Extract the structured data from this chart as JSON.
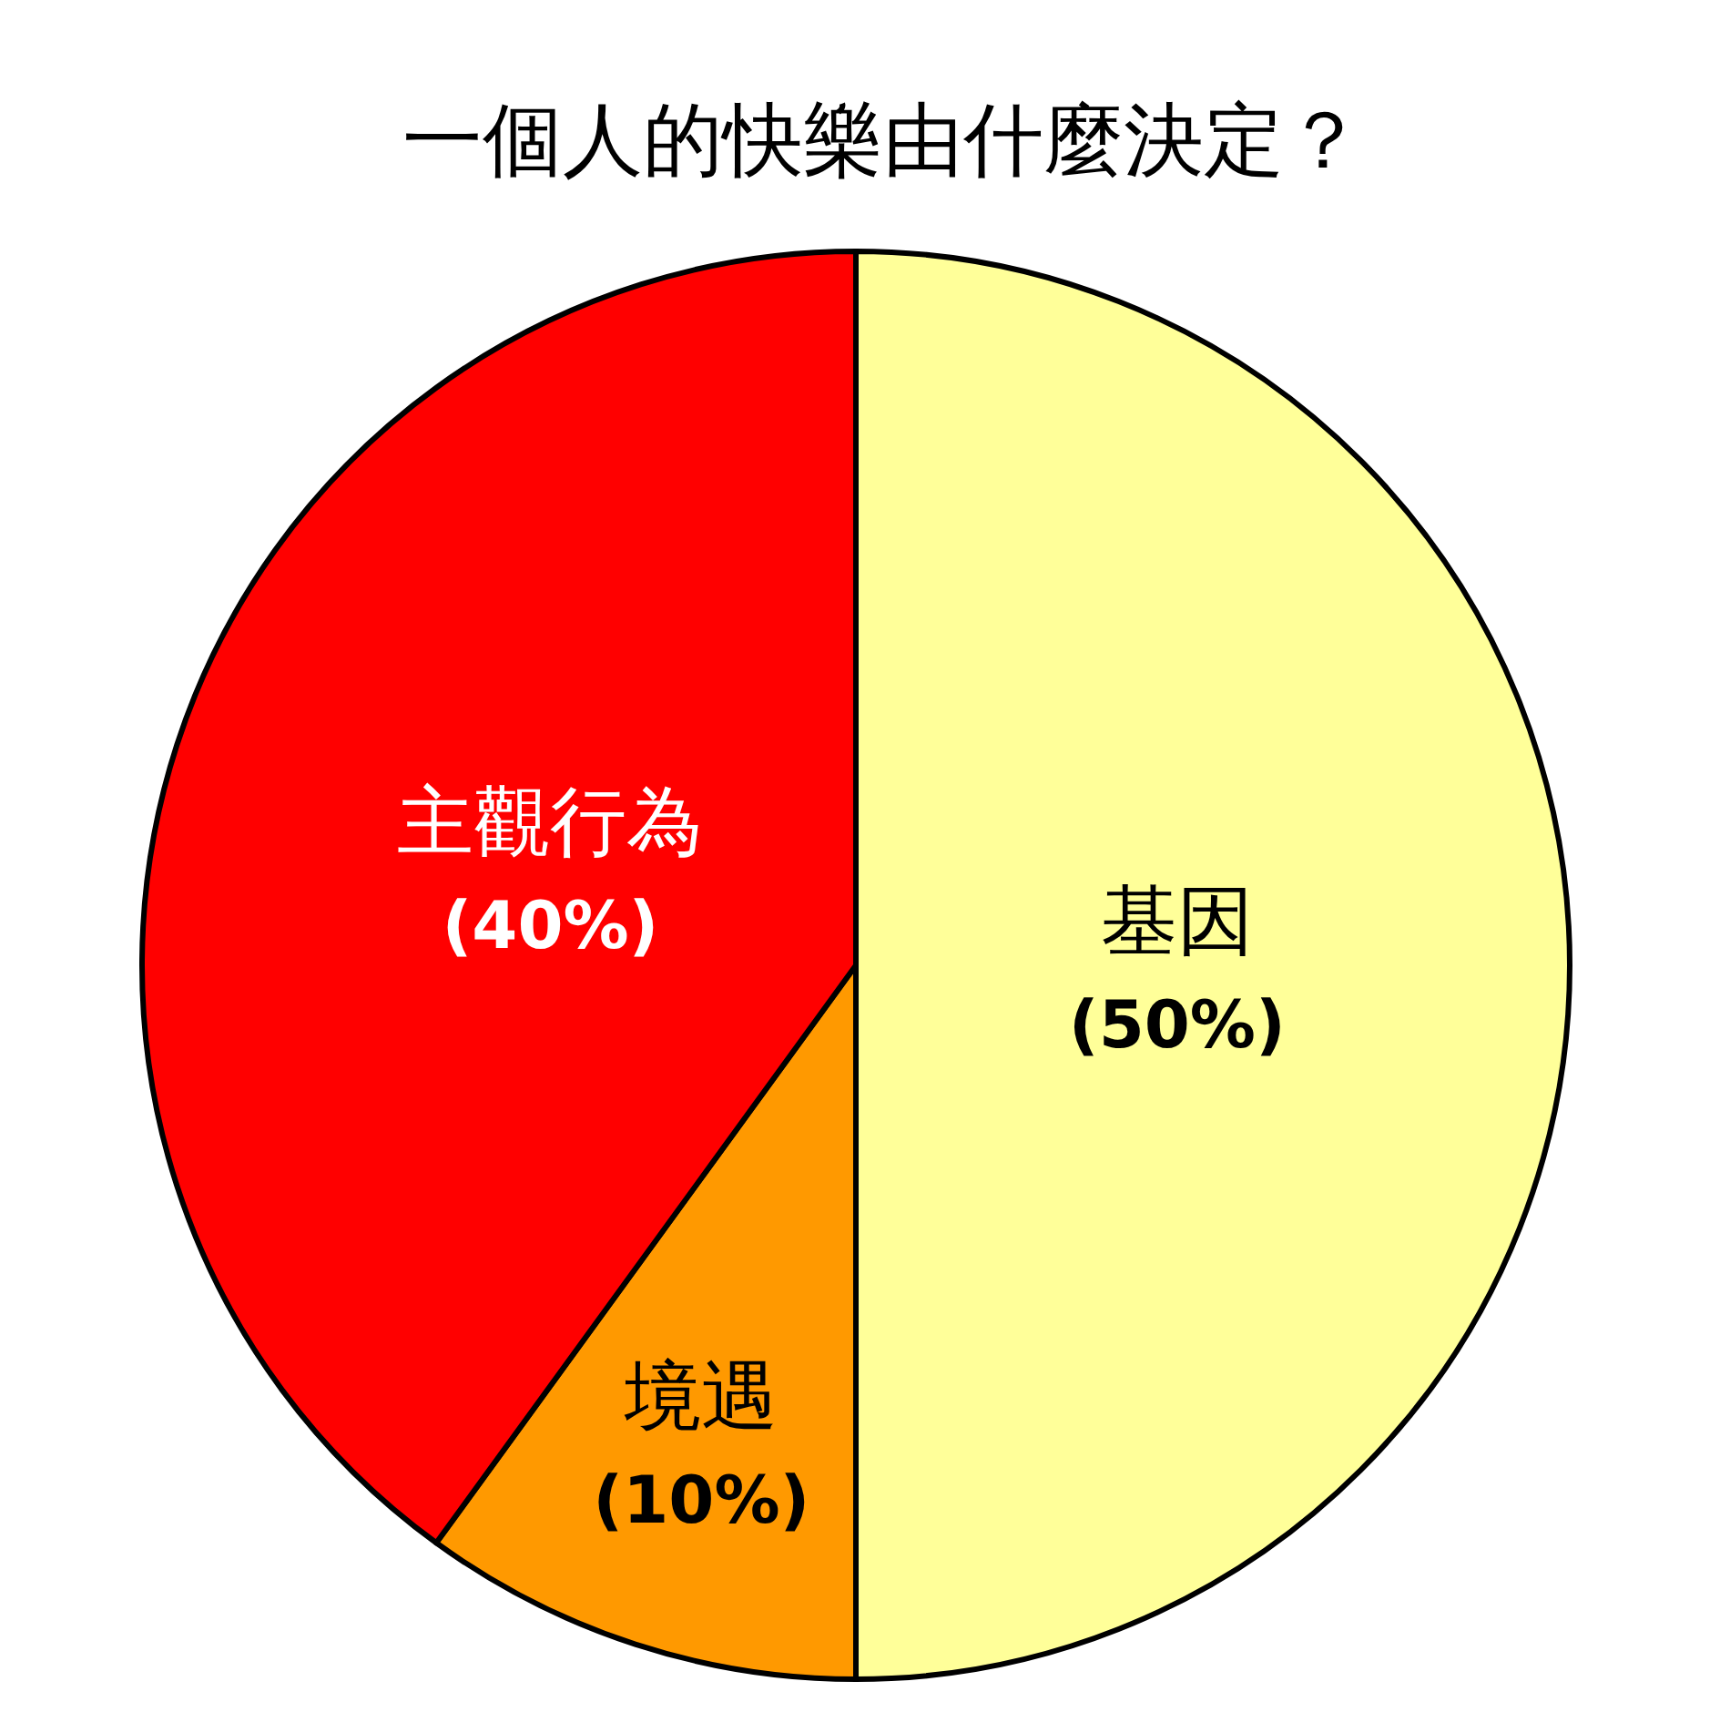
{
  "chart_data": {
    "type": "pie",
    "title": "一個人的快樂由什麼決定？",
    "categories": [
      "基因",
      "境遇",
      "主觀行為"
    ],
    "values": [
      50,
      10,
      40
    ],
    "colors": [
      "#ffff99",
      "#ff9900",
      "#ff0000"
    ],
    "value_labels": [
      "(50%)",
      "(10%)",
      "(40%)"
    ]
  }
}
